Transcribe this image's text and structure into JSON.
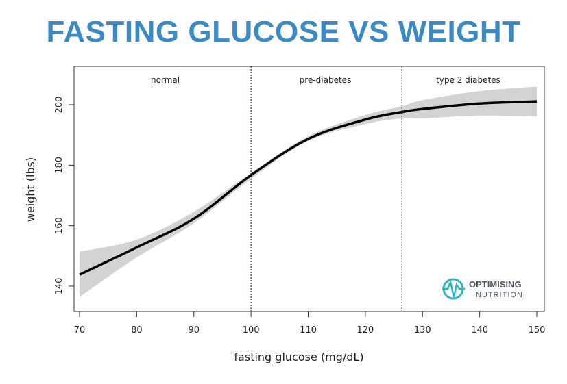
{
  "chart_data": {
    "type": "line",
    "title": "FASTING GLUCOSE VS WEIGHT",
    "xlabel": "fasting glucose (mg/dL)",
    "ylabel": "weight (lbs)",
    "xlim": [
      69,
      150
    ],
    "ylim": [
      132,
      212
    ],
    "xticks": [
      70,
      80,
      90,
      100,
      110,
      120,
      130,
      140,
      150
    ],
    "yticks": [
      140,
      160,
      180,
      200
    ],
    "grid": false,
    "x": [
      70,
      80,
      90,
      100,
      110,
      120,
      126.4,
      130,
      140,
      150
    ],
    "y": [
      143.8,
      152.8,
      162.3,
      176.7,
      188.7,
      195.1,
      197.6,
      198.6,
      200.4,
      201.1
    ],
    "ci_upper": [
      151.4,
      155.4,
      164.6,
      177.4,
      189.6,
      196.6,
      199.5,
      201.5,
      204.5,
      206.0
    ],
    "ci_lower": [
      136.4,
      149.5,
      160.8,
      175.5,
      188.0,
      193.6,
      195.5,
      195.5,
      196.4,
      196.1
    ],
    "vlines": [
      100,
      126.4
    ],
    "regions": [
      {
        "label": "normal",
        "x": 85
      },
      {
        "label": "pre-diabetes",
        "x": 113
      },
      {
        "label": "type 2 diabetes",
        "x": 138
      }
    ],
    "colors": {
      "title": "#3a8ac3",
      "line": "#000000",
      "band": "#d3d3d3",
      "logo": "#2bb6bd"
    }
  },
  "logo": {
    "line1": "OPTIMISING",
    "line2": "NUTRITION"
  }
}
